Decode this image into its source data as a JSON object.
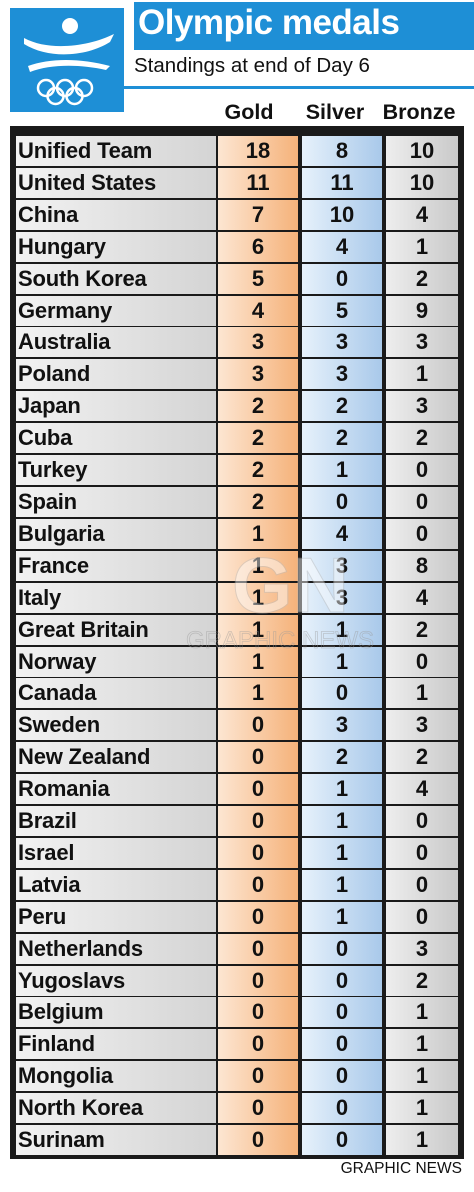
{
  "header": {
    "title": "Olympic medals",
    "subtitle": "Standings at end of Day 6"
  },
  "colors": {
    "accent_blue": "#1e8fd6",
    "gold_column": "#f5b27a",
    "silver_column": "#a9c9ea",
    "bronze_column": "#c9c9c9",
    "table_frame": "#1a1a1a"
  },
  "logo": {
    "icon": "barcelona-1992-olympic-logo-icon"
  },
  "watermark": {
    "text": "GRAPHIC NEWS",
    "mark": "GN"
  },
  "credit": "GRAPHIC NEWS",
  "chart_data": {
    "type": "table",
    "title": "Olympic medals",
    "subtitle": "Standings at end of Day 6",
    "columns": [
      "Gold",
      "Silver",
      "Bronze"
    ],
    "rows": [
      {
        "country": "Unified Team",
        "gold": 18,
        "silver": 8,
        "bronze": 10
      },
      {
        "country": "United States",
        "gold": 11,
        "silver": 11,
        "bronze": 10
      },
      {
        "country": "China",
        "gold": 7,
        "silver": 10,
        "bronze": 4
      },
      {
        "country": "Hungary",
        "gold": 6,
        "silver": 4,
        "bronze": 1
      },
      {
        "country": "South Korea",
        "gold": 5,
        "silver": 0,
        "bronze": 2
      },
      {
        "country": "Germany",
        "gold": 4,
        "silver": 5,
        "bronze": 9
      },
      {
        "country": "Australia",
        "gold": 3,
        "silver": 3,
        "bronze": 3
      },
      {
        "country": "Poland",
        "gold": 3,
        "silver": 3,
        "bronze": 1
      },
      {
        "country": "Japan",
        "gold": 2,
        "silver": 2,
        "bronze": 3
      },
      {
        "country": "Cuba",
        "gold": 2,
        "silver": 2,
        "bronze": 2
      },
      {
        "country": "Turkey",
        "gold": 2,
        "silver": 1,
        "bronze": 0
      },
      {
        "country": "Spain",
        "gold": 2,
        "silver": 0,
        "bronze": 0
      },
      {
        "country": "Bulgaria",
        "gold": 1,
        "silver": 4,
        "bronze": 0
      },
      {
        "country": "France",
        "gold": 1,
        "silver": 3,
        "bronze": 8
      },
      {
        "country": "Italy",
        "gold": 1,
        "silver": 3,
        "bronze": 4
      },
      {
        "country": "Great Britain",
        "gold": 1,
        "silver": 1,
        "bronze": 2
      },
      {
        "country": "Norway",
        "gold": 1,
        "silver": 1,
        "bronze": 0
      },
      {
        "country": "Canada",
        "gold": 1,
        "silver": 0,
        "bronze": 1
      },
      {
        "country": "Sweden",
        "gold": 0,
        "silver": 3,
        "bronze": 3
      },
      {
        "country": "New Zealand",
        "gold": 0,
        "silver": 2,
        "bronze": 2
      },
      {
        "country": "Romania",
        "gold": 0,
        "silver": 1,
        "bronze": 4
      },
      {
        "country": "Brazil",
        "gold": 0,
        "silver": 1,
        "bronze": 0
      },
      {
        "country": "Israel",
        "gold": 0,
        "silver": 1,
        "bronze": 0
      },
      {
        "country": "Latvia",
        "gold": 0,
        "silver": 1,
        "bronze": 0
      },
      {
        "country": "Peru",
        "gold": 0,
        "silver": 1,
        "bronze": 0
      },
      {
        "country": "Netherlands",
        "gold": 0,
        "silver": 0,
        "bronze": 3
      },
      {
        "country": "Yugoslavs",
        "gold": 0,
        "silver": 0,
        "bronze": 2
      },
      {
        "country": "Belgium",
        "gold": 0,
        "silver": 0,
        "bronze": 1
      },
      {
        "country": "Finland",
        "gold": 0,
        "silver": 0,
        "bronze": 1
      },
      {
        "country": "Mongolia",
        "gold": 0,
        "silver": 0,
        "bronze": 1
      },
      {
        "country": "North Korea",
        "gold": 0,
        "silver": 0,
        "bronze": 1
      },
      {
        "country": "Surinam",
        "gold": 0,
        "silver": 0,
        "bronze": 1
      }
    ]
  }
}
